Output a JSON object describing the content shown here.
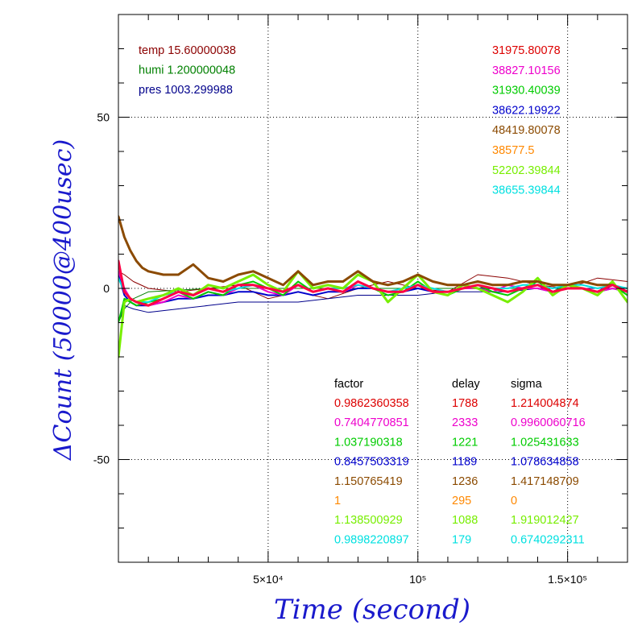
{
  "chart_data": {
    "type": "line",
    "xlabel": "Time (second)",
    "ylabel": "ΔCount (50000@400usec)",
    "xlim": [
      0,
      170000
    ],
    "ylim": [
      -80,
      80
    ],
    "x_ticks": [
      {
        "value": 50000,
        "label": "5×10⁴"
      },
      {
        "value": 100000,
        "label": "10⁵"
      },
      {
        "value": 150000,
        "label": "1.5×10⁵"
      }
    ],
    "y_ticks": [
      {
        "value": 50,
        "label": "50"
      },
      {
        "value": 0,
        "label": "0"
      },
      {
        "value": -50,
        "label": "-50"
      }
    ],
    "grid": "dotted at major ticks",
    "env_readings": [
      {
        "text": "temp 15.60000038",
        "color": "#8b0000"
      },
      {
        "text": "humi 1.200000048",
        "color": "#008000"
      },
      {
        "text": "pres 1003.299988",
        "color": "#00008b"
      }
    ],
    "series_values": [
      {
        "text": "31975.80078",
        "color": "#dd0000"
      },
      {
        "text": "38827.10156",
        "color": "#ee00cc"
      },
      {
        "text": "31930.40039",
        "color": "#00cc00"
      },
      {
        "text": "38622.19922",
        "color": "#0000cc"
      },
      {
        "text": "48419.80078",
        "color": "#8b4a00"
      },
      {
        "text": "38577.5",
        "color": "#ff8800"
      },
      {
        "text": "52202.39844",
        "color": "#77ee00"
      },
      {
        "text": "38655.39844",
        "color": "#00e0e0"
      }
    ],
    "table_headers": [
      "factor",
      "delay",
      "sigma"
    ],
    "table_rows": [
      {
        "factor": "0.9862360358",
        "delay": "1788",
        "sigma": "1.214004874",
        "color": "#dd0000"
      },
      {
        "factor": "0.7404770851",
        "delay": "2333",
        "sigma": "0.9960060716",
        "color": "#ee00cc"
      },
      {
        "factor": "1.037190318",
        "delay": "1221",
        "sigma": "1.025431633",
        "color": "#00cc00"
      },
      {
        "factor": "0.8457503319",
        "delay": "1189",
        "sigma": "1.078634858",
        "color": "#0000cc"
      },
      {
        "factor": "1.150765419",
        "delay": "1236",
        "sigma": "1.417148709",
        "color": "#8b4a00"
      },
      {
        "factor": "1",
        "delay": "295",
        "sigma": "0",
        "color": "#ff8800"
      },
      {
        "factor": "1.138500929",
        "delay": "1088",
        "sigma": "1.919012427",
        "color": "#77ee00"
      },
      {
        "factor": "0.9898220897",
        "delay": "179",
        "sigma": "0.6740292311",
        "color": "#00e0e0"
      }
    ],
    "series": [
      {
        "color": "#8b0000",
        "width": 1,
        "x": [
          0,
          2000,
          5000,
          10000,
          20000,
          30000,
          40000,
          50000,
          60000,
          70000,
          80000,
          90000,
          100000,
          110000,
          120000,
          130000,
          140000,
          150000,
          160000,
          170000
        ],
        "y": [
          5,
          4,
          2,
          0,
          -1,
          0,
          1,
          -3,
          -1,
          -3,
          0,
          2,
          0,
          -1,
          4,
          3,
          1,
          0,
          3,
          2
        ]
      },
      {
        "color": "#008000",
        "width": 1,
        "x": [
          0,
          2000,
          5000,
          10000,
          30000,
          60000,
          100000,
          140000,
          170000
        ],
        "y": [
          -10,
          -6,
          -3,
          -1,
          0,
          0,
          0,
          0,
          0
        ]
      },
      {
        "color": "#00008b",
        "width": 1,
        "x": [
          0,
          2000,
          5000,
          10000,
          20000,
          30000,
          40000,
          50000,
          60000,
          70000,
          80000,
          90000,
          100000,
          110000,
          120000,
          130000,
          140000,
          150000,
          160000,
          170000
        ],
        "y": [
          -10,
          -5,
          -6,
          -7,
          -6,
          -5,
          -4,
          -4,
          -4,
          -3,
          -2,
          -2,
          -2,
          -1,
          -1,
          -1,
          0,
          0,
          0,
          0
        ]
      },
      {
        "color": "#0000cc",
        "width": 2,
        "x": [
          0,
          2000,
          4000,
          6000,
          10000,
          15000,
          20000,
          25000,
          30000,
          35000,
          40000,
          45000,
          50000,
          55000,
          60000,
          65000,
          70000,
          75000,
          80000,
          85000,
          90000,
          95000,
          100000,
          105000,
          110000,
          115000,
          120000,
          125000,
          130000,
          135000,
          140000,
          145000,
          150000,
          155000,
          160000,
          165000,
          170000
        ],
        "y": [
          4,
          -2,
          -4,
          -5,
          -5,
          -4,
          -3,
          -3,
          -2,
          -2,
          -1,
          -1,
          -2,
          -2,
          -1,
          -2,
          -1,
          -1,
          0,
          0,
          -1,
          -1,
          0,
          -1,
          -1,
          0,
          0,
          0,
          -1,
          0,
          0,
          -1,
          0,
          0,
          -1,
          0,
          -1
        ]
      },
      {
        "color": "#ee00cc",
        "width": 2,
        "x": [
          0,
          2000,
          4000,
          6000,
          10000,
          15000,
          20000,
          25000,
          30000,
          35000,
          40000,
          45000,
          50000,
          55000,
          60000,
          65000,
          70000,
          75000,
          80000,
          85000,
          90000,
          95000,
          100000,
          105000,
          110000,
          115000,
          120000,
          125000,
          130000,
          135000,
          140000,
          145000,
          150000,
          155000,
          160000,
          165000,
          170000
        ],
        "y": [
          5,
          0,
          -3,
          -4,
          -5,
          -4,
          -2,
          -3,
          -1,
          -2,
          0,
          1,
          -1,
          -2,
          1,
          -1,
          0,
          -1,
          1,
          0,
          -1,
          -1,
          1,
          -1,
          -1,
          0,
          0,
          -1,
          1,
          0,
          0,
          -1,
          1,
          0,
          -1,
          0,
          -1
        ]
      },
      {
        "color": "#00cc00",
        "width": 2,
        "x": [
          0,
          2000,
          4000,
          6000,
          10000,
          15000,
          20000,
          25000,
          30000,
          35000,
          40000,
          45000,
          50000,
          55000,
          60000,
          65000,
          70000,
          75000,
          80000,
          85000,
          90000,
          95000,
          100000,
          105000,
          110000,
          115000,
          120000,
          125000,
          130000,
          135000,
          140000,
          145000,
          150000,
          155000,
          160000,
          165000,
          170000
        ],
        "y": [
          -10,
          -3,
          -4,
          -5,
          -4,
          -3,
          -1,
          -3,
          -1,
          -2,
          1,
          2,
          0,
          -2,
          2,
          -1,
          0,
          -1,
          2,
          0,
          -2,
          -1,
          2,
          -1,
          -2,
          0,
          1,
          -1,
          -2,
          0,
          2,
          -1,
          1,
          0,
          -1,
          1,
          -2
        ]
      },
      {
        "color": "#00e0e0",
        "width": 2,
        "x": [
          0,
          2000,
          4000,
          6000,
          10000,
          15000,
          20000,
          25000,
          30000,
          35000,
          40000,
          45000,
          50000,
          55000,
          60000,
          65000,
          70000,
          75000,
          80000,
          85000,
          90000,
          95000,
          100000,
          105000,
          110000,
          115000,
          120000,
          125000,
          130000,
          135000,
          140000,
          145000,
          150000,
          155000,
          160000,
          165000,
          170000
        ],
        "y": [
          3,
          -1,
          -3,
          -4,
          -4,
          -2,
          -1,
          -2,
          0,
          -1,
          0,
          1,
          0,
          -1,
          1,
          -1,
          0,
          0,
          1,
          0,
          -1,
          0,
          1,
          0,
          -1,
          0,
          1,
          0,
          0,
          1,
          1,
          0,
          1,
          1,
          0,
          1,
          0
        ]
      },
      {
        "color": "#77ee00",
        "width": 3,
        "x": [
          0,
          2000,
          4000,
          6000,
          10000,
          15000,
          20000,
          25000,
          30000,
          35000,
          40000,
          45000,
          50000,
          55000,
          60000,
          65000,
          70000,
          75000,
          80000,
          85000,
          90000,
          95000,
          100000,
          105000,
          110000,
          115000,
          120000,
          125000,
          130000,
          135000,
          140000,
          145000,
          150000,
          155000,
          160000,
          165000,
          170000
        ],
        "y": [
          -20,
          -4,
          -3,
          -4,
          -3,
          -2,
          0,
          -2,
          1,
          0,
          2,
          4,
          1,
          -1,
          5,
          0,
          1,
          0,
          4,
          2,
          -4,
          0,
          4,
          -1,
          -2,
          1,
          0,
          -2,
          -4,
          -1,
          3,
          -2,
          1,
          0,
          -2,
          2,
          -4
        ]
      },
      {
        "color": "#8b4a00",
        "width": 3,
        "x": [
          0,
          2000,
          4000,
          6000,
          8000,
          10000,
          15000,
          20000,
          25000,
          30000,
          35000,
          40000,
          45000,
          50000,
          55000,
          60000,
          65000,
          70000,
          75000,
          80000,
          85000,
          90000,
          95000,
          100000,
          105000,
          110000,
          115000,
          120000,
          125000,
          130000,
          135000,
          140000,
          145000,
          150000,
          155000,
          160000,
          165000,
          170000
        ],
        "y": [
          21,
          15,
          11,
          8,
          6,
          5,
          4,
          4,
          7,
          3,
          2,
          4,
          5,
          3,
          1,
          5,
          1,
          2,
          2,
          5,
          2,
          1,
          2,
          4,
          2,
          1,
          1,
          2,
          1,
          1,
          2,
          2,
          1,
          1,
          2,
          1,
          1,
          -1
        ]
      },
      {
        "color": "#ff0044",
        "width": 3,
        "x": [
          0,
          2000,
          4000,
          6000,
          10000,
          15000,
          20000,
          25000,
          30000,
          35000,
          40000,
          45000,
          50000,
          55000,
          60000,
          65000,
          70000,
          75000,
          80000,
          85000,
          90000,
          95000,
          100000,
          105000,
          110000,
          115000,
          120000,
          125000,
          130000,
          135000,
          140000,
          145000,
          150000,
          155000,
          160000,
          165000,
          170000
        ],
        "y": [
          8,
          -1,
          -3,
          -4,
          -5,
          -3,
          -1,
          -2,
          0,
          -1,
          1,
          1,
          0,
          -1,
          1,
          -1,
          0,
          -1,
          2,
          0,
          -1,
          -1,
          1,
          -1,
          -1,
          0,
          1,
          0,
          -1,
          0,
          1,
          -1,
          0,
          0,
          -1,
          1,
          -1
        ]
      }
    ]
  }
}
